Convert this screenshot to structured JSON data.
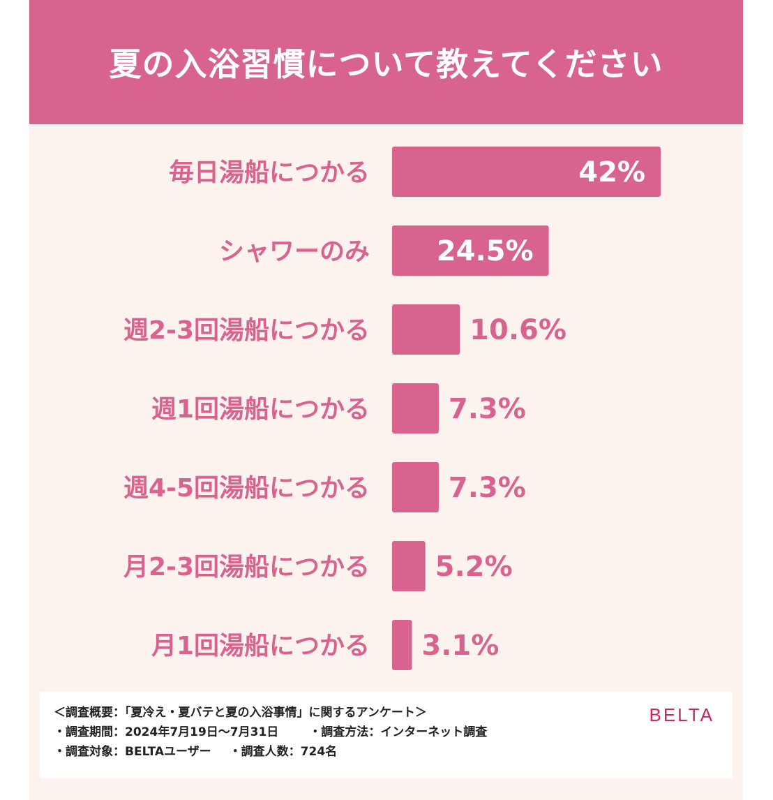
{
  "colors": {
    "header_bg": "#d8638f",
    "bar": "#d8638f",
    "category_text": "#d8638f",
    "value_text_outside": "#d8638f",
    "value_text_inside": "#ffffff",
    "background": "#fdf3ee",
    "brand": "#d1245f"
  },
  "chart_data": {
    "type": "bar",
    "orientation": "horizontal",
    "title": "夏の入浴習慣について教えてください",
    "categories": [
      "毎日湯船につかる",
      "シャワーのみ",
      "週2-3回湯船につかる",
      "週1回湯船につかる",
      "週4-5回湯船につかる",
      "月2-3回湯船につかる",
      "月1回湯船につかる"
    ],
    "values": [
      42,
      24.5,
      10.6,
      7.3,
      7.3,
      5.2,
      3.1
    ],
    "value_labels": [
      "42%",
      "24.5%",
      "10.6%",
      "7.3%",
      "7.3%",
      "5.2%",
      "3.1%"
    ],
    "unit": "%",
    "xlim": [
      0,
      42
    ],
    "grid": false,
    "legend": "none"
  },
  "footer": {
    "summary": "＜調査概要：「夏冷え・夏バテと夏の入浴事情」に関するアンケート＞",
    "period": "・調査期間：2024年7月19日～7月31日",
    "method": "・調査方法：インターネット調査",
    "target": "・調査対象：BELTAユーザー",
    "respondents": "・調査人数：724名",
    "brand": "BELTA"
  }
}
